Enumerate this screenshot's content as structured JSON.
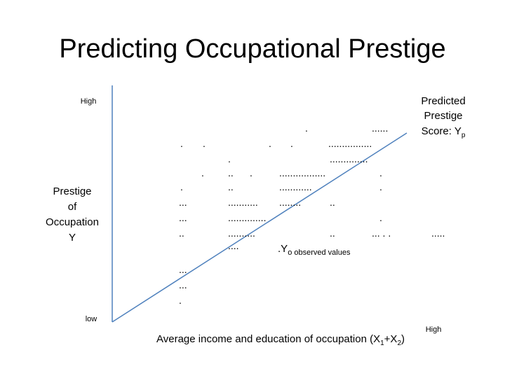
{
  "title": "Predicting Occupational Prestige",
  "y_axis": {
    "high": "High",
    "label_lines": [
      "Prestige",
      "of",
      "Occupation",
      "Y"
    ],
    "low": "low"
  },
  "x_axis": {
    "label_parts": [
      "Average income and education of occupation (X",
      "1",
      "+X",
      "2",
      ")"
    ],
    "high": "High"
  },
  "predicted_label": {
    "lines": [
      "Predicted",
      "Prestige"
    ],
    "score_parts": [
      "Score: Y",
      "p"
    ]
  },
  "observed_label": {
    "parts": [
      ".Y",
      "o",
      " observed values"
    ]
  },
  "dots": [
    ".",
    "......",
    ".",
    ".",
    ".",
    ".",
    "................",
    ".",
    "..............",
    ".",
    "..",
    ".",
    ".................",
    ".",
    ".",
    "..",
    "............",
    ".",
    "...",
    "...........",
    "........",
    "..",
    "...",
    "..............",
    ".",
    "..",
    "..........",
    "..",
    "... . .",
    ".....",
    "....",
    "...",
    "...",
    "."
  ]
}
